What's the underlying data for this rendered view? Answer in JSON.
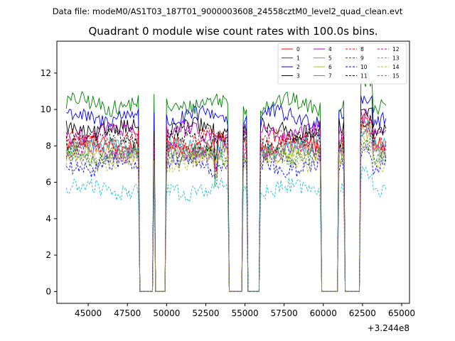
{
  "header": {
    "subtitle": "Data file: modeM0/AS1T03_187T01_9000003608_24558cztM0_level2_quad_clean.evt"
  },
  "chart_data": {
    "type": "line",
    "title": "Quadrant 0 module wise count rates with 100.0s bins.",
    "xlabel": "",
    "ylabel": "",
    "offset_label": "+3.244e8",
    "xlim": [
      43000,
      65500
    ],
    "ylim": [
      -0.65,
      13.75
    ],
    "xticks": [
      45000,
      47500,
      50000,
      52500,
      55000,
      57500,
      60000,
      62500,
      65000
    ],
    "xtick_labels": [
      "45000",
      "47500",
      "50000",
      "52500",
      "55000",
      "57500",
      "60000",
      "62500",
      "65000"
    ],
    "yticks": [
      0,
      2,
      4,
      6,
      8,
      10,
      12
    ],
    "ytick_labels": [
      "0",
      "2",
      "4",
      "6",
      "8",
      "10",
      "12"
    ],
    "x_start": 43600,
    "x_end": 64000,
    "bin": 100,
    "gaps": [
      [
        48300,
        49100
      ],
      [
        49300,
        49900
      ],
      [
        54000,
        54800
      ],
      [
        55200,
        55900
      ],
      [
        59900,
        60900
      ],
      [
        61400,
        62300
      ]
    ],
    "legend_loc": "upper right",
    "series": [
      {
        "name": "0",
        "color": "#ff0000",
        "dash": "solid",
        "level": 8.1
      },
      {
        "name": "1",
        "color": "#008000",
        "dash": "solid",
        "level": 10.3
      },
      {
        "name": "2",
        "color": "#0000ff",
        "dash": "solid",
        "level": 9.6
      },
      {
        "name": "3",
        "color": "#000000",
        "dash": "solid",
        "level": 8.9
      },
      {
        "name": "4",
        "color": "#bf00bf",
        "dash": "solid",
        "level": 8.7
      },
      {
        "name": "5",
        "color": "#17becf",
        "dash": "solid",
        "level": 7.9
      },
      {
        "name": "6",
        "color": "#bcbd22",
        "dash": "solid",
        "level": 7.6
      },
      {
        "name": "7",
        "color": "#7f7f7f",
        "dash": "solid",
        "level": 7.8
      },
      {
        "name": "8",
        "color": "#ff0000",
        "dash": "dashed",
        "level": 8.3
      },
      {
        "name": "9",
        "color": "#008000",
        "dash": "dashed",
        "level": 7.5
      },
      {
        "name": "10",
        "color": "#0000ff",
        "dash": "dashed",
        "level": 6.9
      },
      {
        "name": "11",
        "color": "#000000",
        "dash": "dashed",
        "level": 8.4
      },
      {
        "name": "12",
        "color": "#bf00bf",
        "dash": "dashed",
        "level": 7.7
      },
      {
        "name": "13",
        "color": "#17becf",
        "dash": "dashed",
        "level": 5.6
      },
      {
        "name": "14",
        "color": "#bcbd22",
        "dash": "dashed",
        "level": 7.2
      },
      {
        "name": "15",
        "color": "#7f7f7f",
        "dash": "dashed",
        "level": 7.4
      }
    ]
  }
}
